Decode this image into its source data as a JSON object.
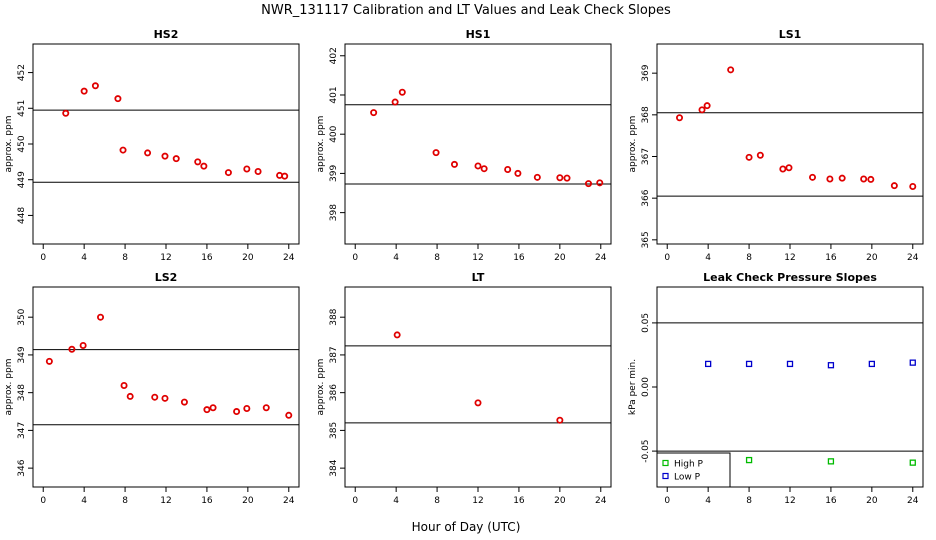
{
  "figure": {
    "title": "NWR_131117  Calibration and LT Values and Leak Check Slopes",
    "xlabel": "Hour of Day (UTC)"
  },
  "chart_data": [
    {
      "type": "scatter",
      "title": "HS2",
      "ylabel": "approx. ppm",
      "xlim": [
        -1,
        25
      ],
      "ylim": [
        447.2,
        452.8
      ],
      "xticks": [
        0,
        4,
        8,
        12,
        16,
        20,
        24
      ],
      "yticks": [
        448,
        449,
        450,
        451,
        452
      ],
      "hlines": [
        450.95,
        448.93
      ],
      "series": [
        {
          "color": "#e00000",
          "marker": "circle",
          "x": [
            2.2,
            4.0,
            5.1,
            7.3,
            7.8,
            10.2,
            11.9,
            13.0,
            15.1,
            15.7,
            18.1,
            19.9,
            21.0,
            23.1,
            23.6
          ],
          "y": [
            450.86,
            451.48,
            451.63,
            451.27,
            449.83,
            449.75,
            449.66,
            449.59,
            449.5,
            449.38,
            449.2,
            449.3,
            449.23,
            449.12,
            449.1
          ]
        }
      ]
    },
    {
      "type": "scatter",
      "title": "HS1",
      "ylabel": "approx. ppm",
      "xlim": [
        -1,
        25
      ],
      "ylim": [
        397.2,
        402.3
      ],
      "xticks": [
        0,
        4,
        8,
        12,
        16,
        20,
        24
      ],
      "yticks": [
        398,
        399,
        400,
        401,
        402
      ],
      "hlines": [
        400.75,
        398.73
      ],
      "series": [
        {
          "color": "#e00000",
          "marker": "circle",
          "x": [
            1.8,
            3.9,
            4.6,
            7.9,
            9.7,
            12.0,
            12.6,
            14.9,
            15.9,
            17.8,
            20.0,
            20.7,
            22.8,
            23.9
          ],
          "y": [
            400.55,
            400.82,
            401.07,
            399.53,
            399.23,
            399.19,
            399.12,
            399.1,
            399.0,
            398.9,
            398.89,
            398.88,
            398.74,
            398.76
          ]
        }
      ]
    },
    {
      "type": "scatter",
      "title": "LS1",
      "ylabel": "approx. ppm",
      "xlim": [
        -1,
        25
      ],
      "ylim": [
        364.9,
        369.7
      ],
      "xticks": [
        0,
        4,
        8,
        12,
        16,
        20,
        24
      ],
      "yticks": [
        365,
        366,
        367,
        368,
        369
      ],
      "hlines": [
        368.05,
        366.05
      ],
      "series": [
        {
          "color": "#e00000",
          "marker": "circle",
          "x": [
            1.2,
            3.4,
            3.9,
            6.2,
            8.0,
            9.1,
            11.3,
            11.9,
            14.2,
            15.9,
            17.1,
            19.2,
            19.9,
            22.2,
            24.0
          ],
          "y": [
            367.93,
            368.12,
            368.22,
            369.08,
            366.98,
            367.03,
            366.7,
            366.73,
            366.5,
            366.46,
            366.48,
            366.46,
            366.45,
            366.3,
            366.28
          ]
        }
      ]
    },
    {
      "type": "scatter",
      "title": "LS2",
      "ylabel": "approx. ppm",
      "xlim": [
        -1,
        25
      ],
      "ylim": [
        345.5,
        350.8
      ],
      "xticks": [
        0,
        4,
        8,
        12,
        16,
        20,
        24
      ],
      "yticks": [
        346,
        347,
        348,
        349,
        350
      ],
      "hlines": [
        349.14,
        347.15
      ],
      "series": [
        {
          "color": "#e00000",
          "marker": "circle",
          "x": [
            0.6,
            2.8,
            3.9,
            5.6,
            7.9,
            8.5,
            10.9,
            11.9,
            13.8,
            16.0,
            16.6,
            18.9,
            19.9,
            21.8,
            24.0
          ],
          "y": [
            348.83,
            349.15,
            349.25,
            350.0,
            348.19,
            347.9,
            347.88,
            347.85,
            347.75,
            347.55,
            347.6,
            347.5,
            347.58,
            347.6,
            347.4
          ]
        }
      ]
    },
    {
      "type": "scatter",
      "title": "LT",
      "ylabel": "approx. ppm",
      "xlim": [
        -1,
        25
      ],
      "ylim": [
        383.5,
        388.8
      ],
      "xticks": [
        0,
        4,
        8,
        12,
        16,
        20,
        24
      ],
      "yticks": [
        384,
        385,
        386,
        387,
        388
      ],
      "hlines": [
        387.24,
        385.2
      ],
      "series": [
        {
          "color": "#e00000",
          "marker": "circle",
          "x": [
            4.1,
            12.0,
            20.0
          ],
          "y": [
            387.53,
            385.73,
            385.27
          ]
        }
      ]
    },
    {
      "type": "scatter",
      "title": "Leak Check Pressure Slopes",
      "ylabel": "kPa per min.",
      "xlim": [
        -1,
        25
      ],
      "ylim": [
        -0.078,
        0.078
      ],
      "xticks": [
        0,
        4,
        8,
        12,
        16,
        20,
        24
      ],
      "yticks": [
        -0.05,
        0.0,
        0.05
      ],
      "ytick_labels": [
        "-0.05",
        "0.00",
        "0.05"
      ],
      "hlines": [
        0.05,
        -0.05
      ],
      "legend": {
        "placement": "bottom-left"
      },
      "series": [
        {
          "name": "High P",
          "color": "#00bb00",
          "marker": "square",
          "x": [
            8.0,
            16.0,
            24.0
          ],
          "y": [
            -0.057,
            -0.058,
            -0.059
          ]
        },
        {
          "name": "Low P",
          "color": "#0000cc",
          "marker": "square",
          "x": [
            4.0,
            8.0,
            12.0,
            16.0,
            20.0,
            24.0
          ],
          "y": [
            0.018,
            0.018,
            0.018,
            0.017,
            0.018,
            0.019
          ]
        }
      ]
    }
  ]
}
